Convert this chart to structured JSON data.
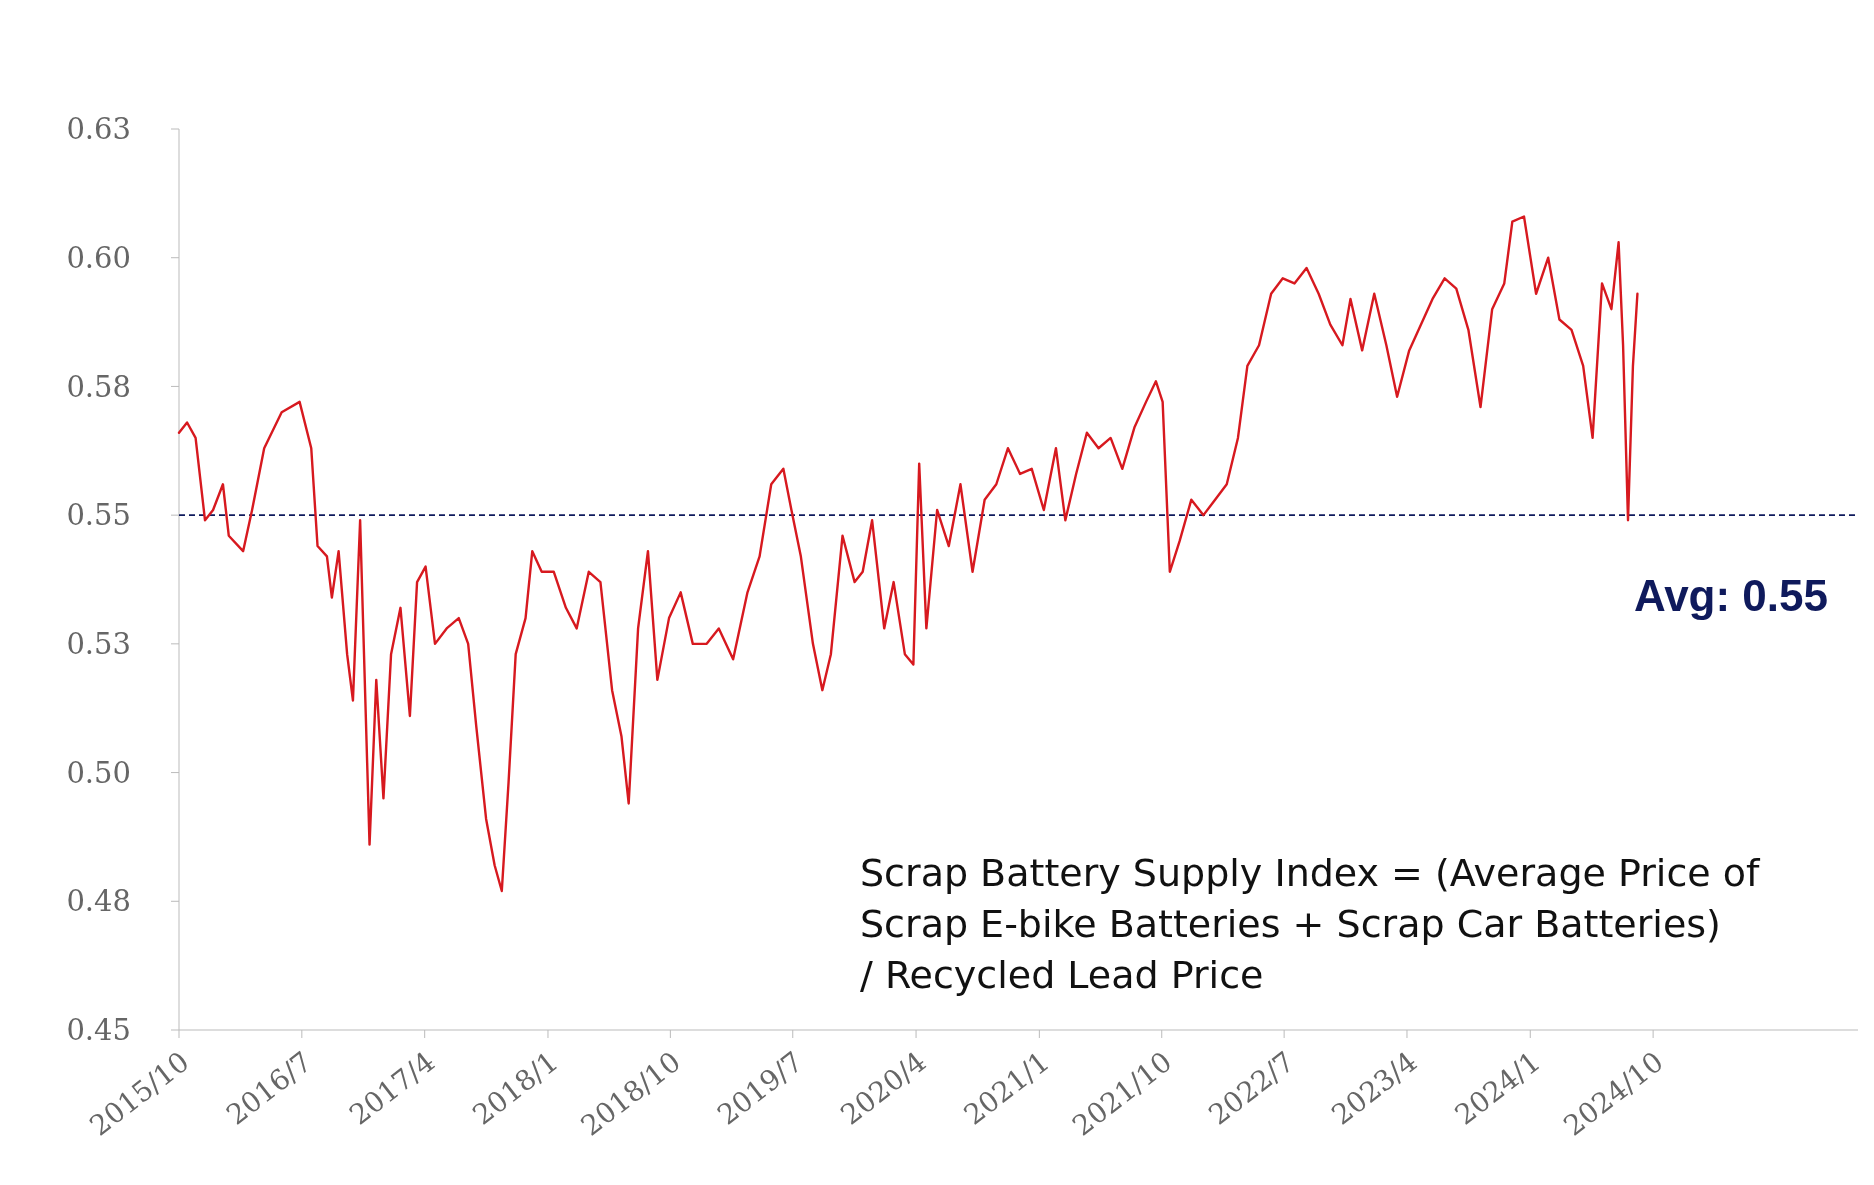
{
  "chart_data": {
    "type": "line",
    "annotations": [
      "Scrap Battery Supply Index = (Average Price of Scrap E-bike Batteries + Scrap Car Batteries) / Recycled Lead Price"
    ],
    "xlim": [
      "2015-10",
      "2026-01"
    ],
    "xticks": [
      {
        "value": "2015-10",
        "label": "2015/10"
      },
      {
        "value": "2016-07",
        "label": "2016/7"
      },
      {
        "value": "2017-04",
        "label": "2017/4"
      },
      {
        "value": "2018-01",
        "label": "2018/1"
      },
      {
        "value": "2018-10",
        "label": "2018/10"
      },
      {
        "value": "2019-07",
        "label": "2019/7"
      },
      {
        "value": "2020-04",
        "label": "2020/4"
      },
      {
        "value": "2021-01",
        "label": "2021/1"
      },
      {
        "value": "2021-10",
        "label": "2021/10"
      },
      {
        "value": "2022-07",
        "label": "2022/7"
      },
      {
        "value": "2023-04",
        "label": "2023/4"
      },
      {
        "value": "2024-01",
        "label": "2024/1"
      },
      {
        "value": "2024-10",
        "label": "2024/10"
      }
    ],
    "ylim": [
      0.45,
      0.625
    ],
    "yticks": [
      {
        "value": 0.45,
        "label": "0.45"
      },
      {
        "value": 0.475,
        "label": "0.48"
      },
      {
        "value": 0.5,
        "label": "0.50"
      },
      {
        "value": 0.525,
        "label": "0.53"
      },
      {
        "value": 0.55,
        "label": "0.55"
      },
      {
        "value": 0.575,
        "label": "0.58"
      },
      {
        "value": 0.6,
        "label": "0.60"
      },
      {
        "value": 0.625,
        "label": "0.63"
      }
    ],
    "grid": false,
    "marker": "none",
    "line_style": "solid",
    "ref_lines": [
      {
        "axis": "y",
        "value": 0.55,
        "label": "Avg: 0.55",
        "color": "#0f1a5c",
        "line_style": "dashed"
      }
    ],
    "series": [
      {
        "color": "#d7191f",
        "x": [
          "2015-10-01",
          "2015-10-19",
          "2015-11-07",
          "2015-11-28",
          "2015-12-16",
          "2016-01-07",
          "2016-01-20",
          "2016-02-21",
          "2016-03-12",
          "2016-04-08",
          "2016-05-17",
          "2016-06-26",
          "2016-07-22",
          "2016-08-05",
          "2016-08-26",
          "2016-09-06",
          "2016-09-21",
          "2016-10-10",
          "2016-10-23",
          "2016-11-08",
          "2016-11-29",
          "2016-12-14",
          "2016-12-30",
          "2017-01-16",
          "2017-02-06",
          "2017-02-27",
          "2017-03-15",
          "2017-04-03",
          "2017-04-24",
          "2017-05-20",
          "2017-06-16",
          "2017-07-07",
          "2017-07-25",
          "2017-08-16",
          "2017-09-04",
          "2017-09-20",
          "2017-10-05",
          "2017-10-21",
          "2017-11-12",
          "2017-11-27",
          "2017-12-18",
          "2018-01-14",
          "2018-02-10",
          "2018-03-06",
          "2018-04-02",
          "2018-04-28",
          "2018-05-24",
          "2018-06-14",
          "2018-06-30",
          "2018-07-21",
          "2018-08-12",
          "2018-09-02",
          "2018-09-28",
          "2018-10-24",
          "2018-11-20",
          "2018-12-21",
          "2019-01-17",
          "2019-02-18",
          "2019-03-22",
          "2019-04-18",
          "2019-05-14",
          "2019-06-10",
          "2019-06-28",
          "2019-07-19",
          "2019-08-15",
          "2019-09-05",
          "2019-09-24",
          "2019-10-20",
          "2019-11-16",
          "2019-12-04",
          "2019-12-25",
          "2020-01-21",
          "2020-02-11",
          "2020-03-07",
          "2020-03-26",
          "2020-04-08",
          "2020-04-24",
          "2020-05-18",
          "2020-06-13",
          "2020-07-09",
          "2020-08-05",
          "2020-09-01",
          "2020-09-27",
          "2020-10-23",
          "2020-11-19",
          "2020-12-15",
          "2021-01-11",
          "2021-02-07",
          "2021-02-28",
          "2021-03-24",
          "2021-04-17",
          "2021-05-13",
          "2021-06-09",
          "2021-07-05",
          "2021-08-01",
          "2021-08-27",
          "2021-09-18",
          "2021-10-03",
          "2021-10-19",
          "2021-11-10",
          "2021-12-06",
          "2022-01-02",
          "2022-01-28",
          "2022-02-23",
          "2022-03-20",
          "2022-04-10",
          "2022-05-06",
          "2022-06-02",
          "2022-06-28",
          "2022-07-24",
          "2022-08-20",
          "2022-09-16",
          "2022-10-12",
          "2022-11-08",
          "2022-11-26",
          "2022-12-22",
          "2023-01-18",
          "2023-02-14",
          "2023-03-10",
          "2023-04-06",
          "2023-05-02",
          "2023-05-28",
          "2023-06-24",
          "2023-07-20",
          "2023-08-16",
          "2023-09-12",
          "2023-10-08",
          "2023-11-04",
          "2023-11-22",
          "2023-12-18",
          "2024-01-14",
          "2024-02-10",
          "2024-03-06",
          "2024-04-02",
          "2024-04-28",
          "2024-05-19",
          "2024-06-09",
          "2024-06-30",
          "2024-07-16",
          "2024-07-26",
          "2024-08-06",
          "2024-08-17",
          "2024-08-27"
        ],
        "values": [
          0.566,
          0.568,
          0.565,
          0.549,
          0.551,
          0.556,
          0.546,
          0.543,
          0.551,
          0.563,
          0.57,
          0.572,
          0.563,
          0.544,
          0.542,
          0.534,
          0.543,
          0.523,
          0.514,
          0.549,
          0.486,
          0.518,
          0.495,
          0.523,
          0.532,
          0.511,
          0.537,
          0.54,
          0.525,
          0.528,
          0.53,
          0.525,
          0.509,
          0.491,
          0.482,
          0.477,
          0.498,
          0.523,
          0.53,
          0.543,
          0.539,
          0.539,
          0.532,
          0.528,
          0.539,
          0.537,
          0.516,
          0.507,
          0.494,
          0.528,
          0.543,
          0.518,
          0.53,
          0.535,
          0.525,
          0.525,
          0.528,
          0.522,
          0.535,
          0.542,
          0.556,
          0.559,
          0.551,
          0.542,
          0.525,
          0.516,
          0.523,
          0.546,
          0.537,
          0.539,
          0.549,
          0.528,
          0.537,
          0.523,
          0.521,
          0.56,
          0.528,
          0.551,
          0.544,
          0.556,
          0.539,
          0.553,
          0.556,
          0.563,
          0.558,
          0.559,
          0.551,
          0.563,
          0.549,
          0.558,
          0.566,
          0.563,
          0.565,
          0.559,
          0.567,
          0.572,
          0.576,
          0.572,
          0.539,
          0.545,
          0.553,
          0.55,
          0.553,
          0.556,
          0.565,
          0.579,
          0.583,
          0.593,
          0.596,
          0.595,
          0.598,
          0.593,
          0.587,
          0.583,
          0.592,
          0.582,
          0.593,
          0.583,
          0.573,
          0.582,
          0.587,
          0.592,
          0.596,
          0.594,
          0.586,
          0.571,
          0.59,
          0.595,
          0.607,
          0.608,
          0.593,
          0.6,
          0.588,
          0.586,
          0.579,
          0.565,
          0.595,
          0.59,
          0.603,
          0.583,
          0.549,
          0.579,
          0.593
        ]
      }
    ]
  }
}
